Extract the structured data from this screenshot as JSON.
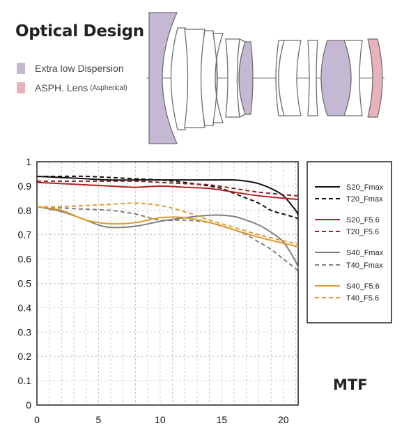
{
  "header": {
    "title": "Optical Design",
    "key_ed": "Extra low Dispersion",
    "key_asph_main": "ASPH. Lens",
    "key_asph_small": "(Aspherical)"
  },
  "colors": {
    "ed": "#c4b8d2",
    "asph": "#e7b2ba",
    "S20_Fmax": "#111111",
    "S20_F5.6": "#b22222",
    "S40_Fmax": "#808080",
    "S40_F5.6": "#e09a2a"
  },
  "chart_label": "MTF",
  "chart_data": {
    "type": "line",
    "title": "",
    "xlabel": "",
    "ylabel": "",
    "xlim": [
      0,
      21.2
    ],
    "ylim": [
      0,
      1
    ],
    "xticks": [
      0,
      5,
      10,
      15,
      20
    ],
    "yticks": [
      0,
      0.1,
      0.2,
      0.3,
      0.4,
      0.5,
      0.6,
      0.7,
      0.8,
      0.9,
      1
    ],
    "grid": true,
    "legend_position": "right",
    "series": [
      {
        "name": "S20_Fmax",
        "style": "solid",
        "color": "#111111",
        "x": [
          0,
          2,
          4,
          6,
          8,
          10,
          12,
          14,
          16,
          17,
          18,
          19,
          20,
          21,
          21.2
        ],
        "y": [
          0.94,
          0.935,
          0.93,
          0.925,
          0.925,
          0.925,
          0.925,
          0.925,
          0.925,
          0.92,
          0.91,
          0.89,
          0.86,
          0.8,
          0.78
        ]
      },
      {
        "name": "T20_Fmax",
        "style": "dashed",
        "color": "#111111",
        "x": [
          0,
          2,
          4,
          6,
          8,
          10,
          12,
          14,
          15,
          16,
          17,
          18,
          19,
          20,
          21,
          21.2
        ],
        "y": [
          0.94,
          0.94,
          0.94,
          0.935,
          0.93,
          0.925,
          0.915,
          0.9,
          0.89,
          0.87,
          0.85,
          0.83,
          0.8,
          0.785,
          0.77,
          0.765
        ]
      },
      {
        "name": "S20_F5.6",
        "style": "solid",
        "color": "#b22222",
        "x": [
          0,
          2,
          4,
          6,
          8,
          10,
          12,
          14,
          16,
          18,
          20,
          21.2
        ],
        "y": [
          0.915,
          0.91,
          0.905,
          0.9,
          0.895,
          0.9,
          0.895,
          0.89,
          0.875,
          0.86,
          0.85,
          0.845
        ]
      },
      {
        "name": "T20_F5.6",
        "style": "dashed",
        "color": "#8b2525",
        "x": [
          0,
          2,
          4,
          6,
          8,
          10,
          12,
          14,
          16,
          18,
          20,
          21.2
        ],
        "y": [
          0.92,
          0.92,
          0.92,
          0.92,
          0.92,
          0.915,
          0.91,
          0.905,
          0.89,
          0.875,
          0.865,
          0.86
        ]
      },
      {
        "name": "S40_Fmax",
        "style": "solid",
        "color": "#808080",
        "x": [
          0,
          2,
          4,
          5,
          6,
          8,
          10,
          12,
          14,
          15,
          16,
          17,
          18,
          19,
          20,
          21,
          21.2
        ],
        "y": [
          0.815,
          0.795,
          0.76,
          0.74,
          0.73,
          0.735,
          0.755,
          0.77,
          0.78,
          0.78,
          0.775,
          0.76,
          0.74,
          0.71,
          0.67,
          0.59,
          0.56
        ]
      },
      {
        "name": "T40_Fmax",
        "style": "dashed",
        "color": "#808080",
        "x": [
          0,
          2,
          4,
          6,
          8,
          10,
          12,
          14,
          16,
          17,
          18,
          19,
          20,
          21,
          21.2
        ],
        "y": [
          0.815,
          0.81,
          0.805,
          0.8,
          0.785,
          0.76,
          0.76,
          0.75,
          0.72,
          0.7,
          0.67,
          0.64,
          0.6,
          0.56,
          0.545
        ]
      },
      {
        "name": "S40_F5.6",
        "style": "solid",
        "color": "#e09a2a",
        "x": [
          0,
          2,
          4,
          6,
          8,
          10,
          12,
          14,
          16,
          18,
          20,
          21.2
        ],
        "y": [
          0.815,
          0.8,
          0.76,
          0.745,
          0.75,
          0.77,
          0.77,
          0.75,
          0.72,
          0.69,
          0.665,
          0.65
        ]
      },
      {
        "name": "T40_F5.6",
        "style": "dashed",
        "color": "#e09a2a",
        "x": [
          0,
          2,
          4,
          6,
          8,
          10,
          12,
          14,
          16,
          18,
          20,
          21.2
        ],
        "y": [
          0.815,
          0.815,
          0.82,
          0.825,
          0.83,
          0.82,
          0.795,
          0.76,
          0.73,
          0.7,
          0.675,
          0.66
        ]
      }
    ]
  }
}
